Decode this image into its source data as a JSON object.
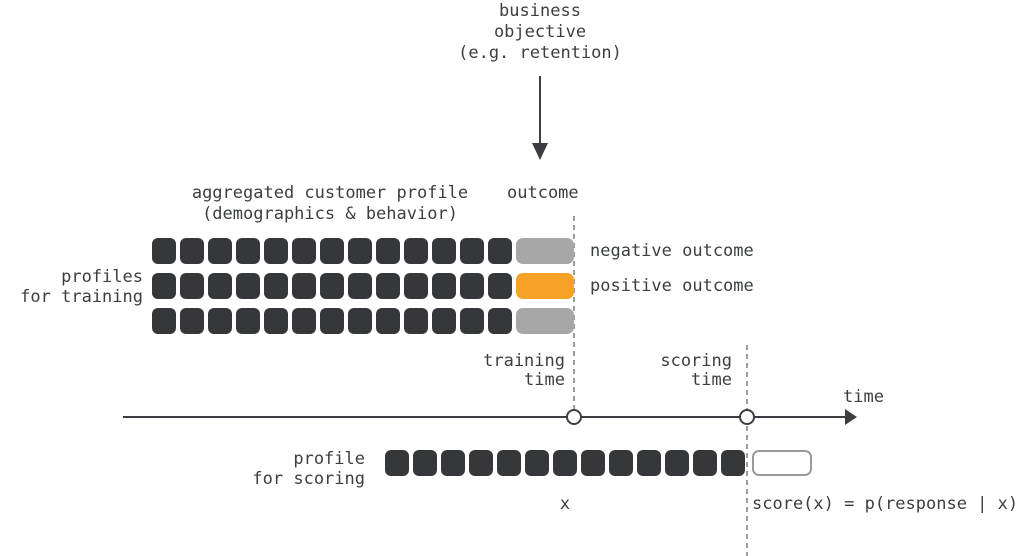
{
  "colors": {
    "background": "#FFFFFF",
    "cell": "#35373B",
    "negative": "#A7A7A7",
    "positive": "#F5A226",
    "text": "#3B3E43",
    "axis": "#3B3E43",
    "dash": "#9E9E9E",
    "placeholder_border": "#9B9B9B"
  },
  "top": {
    "business_objective": "business\nobjective\n(e.g. retention)"
  },
  "training": {
    "profile_header": "aggregated customer profile\n(demographics & behavior)",
    "outcome_header": "outcome",
    "left_label": "profiles\nfor training",
    "cells_per_row": 13,
    "rows": [
      {
        "outcome": "negative"
      },
      {
        "outcome": "positive"
      },
      {
        "outcome": "negative"
      }
    ],
    "legend": {
      "negative": "negative outcome",
      "positive": "positive outcome"
    }
  },
  "timeline": {
    "training_time": "training\ntime",
    "scoring_time": "scoring\ntime",
    "axis_label": "time"
  },
  "scoring": {
    "left_label": "profile\nfor scoring",
    "cells": 13,
    "x_label": "x",
    "formula": "score(x) = p(response | x)"
  }
}
